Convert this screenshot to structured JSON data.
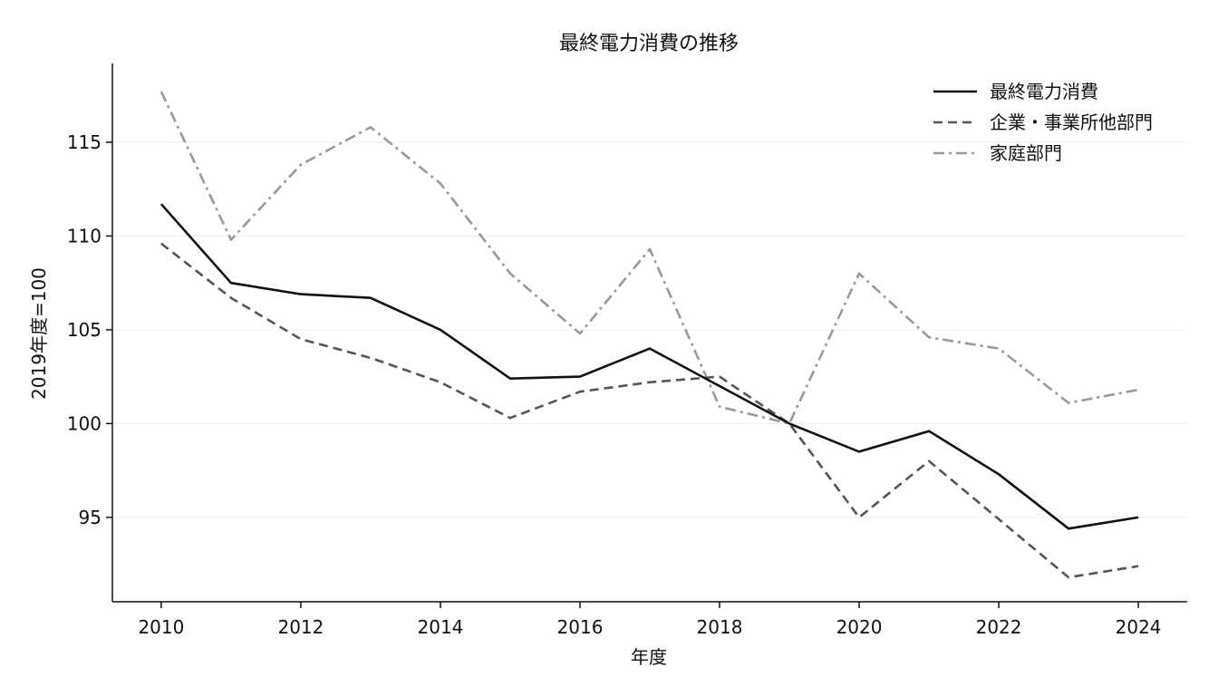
{
  "chart_data": {
    "type": "line",
    "title": "最終電力消費の推移",
    "xlabel": "年度",
    "ylabel": "2019年度=100",
    "xlim": [
      2009.3,
      2024.7
    ],
    "ylim": [
      90.5,
      119.2
    ],
    "xticks": [
      2010,
      2012,
      2014,
      2016,
      2018,
      2020,
      2022,
      2024
    ],
    "yticks": [
      95,
      100,
      105,
      110,
      115
    ],
    "grid": "horizontal",
    "legend_position": "top-right",
    "x": [
      2010,
      2011,
      2012,
      2013,
      2014,
      2015,
      2016,
      2017,
      2018,
      2019,
      2020,
      2021,
      2022,
      2023,
      2024
    ],
    "series": [
      {
        "name": "最終電力消費",
        "color": "#111111",
        "dash": "solid",
        "values": [
          111.7,
          107.5,
          106.9,
          106.7,
          105.0,
          102.4,
          102.5,
          104.0,
          102.0,
          100.0,
          98.5,
          99.6,
          97.3,
          94.4,
          95.0
        ]
      },
      {
        "name": "企業・事業所他部門",
        "color": "#555555",
        "dash": "dashed",
        "values": [
          109.6,
          106.7,
          104.5,
          103.5,
          102.2,
          100.3,
          101.7,
          102.2,
          102.5,
          100.0,
          95.0,
          98.0,
          94.9,
          91.8,
          92.4
        ]
      },
      {
        "name": "家庭部門",
        "color": "#999999",
        "dash": "dashdot",
        "values": [
          117.7,
          109.8,
          113.8,
          115.8,
          112.8,
          108.0,
          104.8,
          109.3,
          100.9,
          100.0,
          108.0,
          104.6,
          104.0,
          101.1,
          101.8
        ]
      }
    ]
  }
}
